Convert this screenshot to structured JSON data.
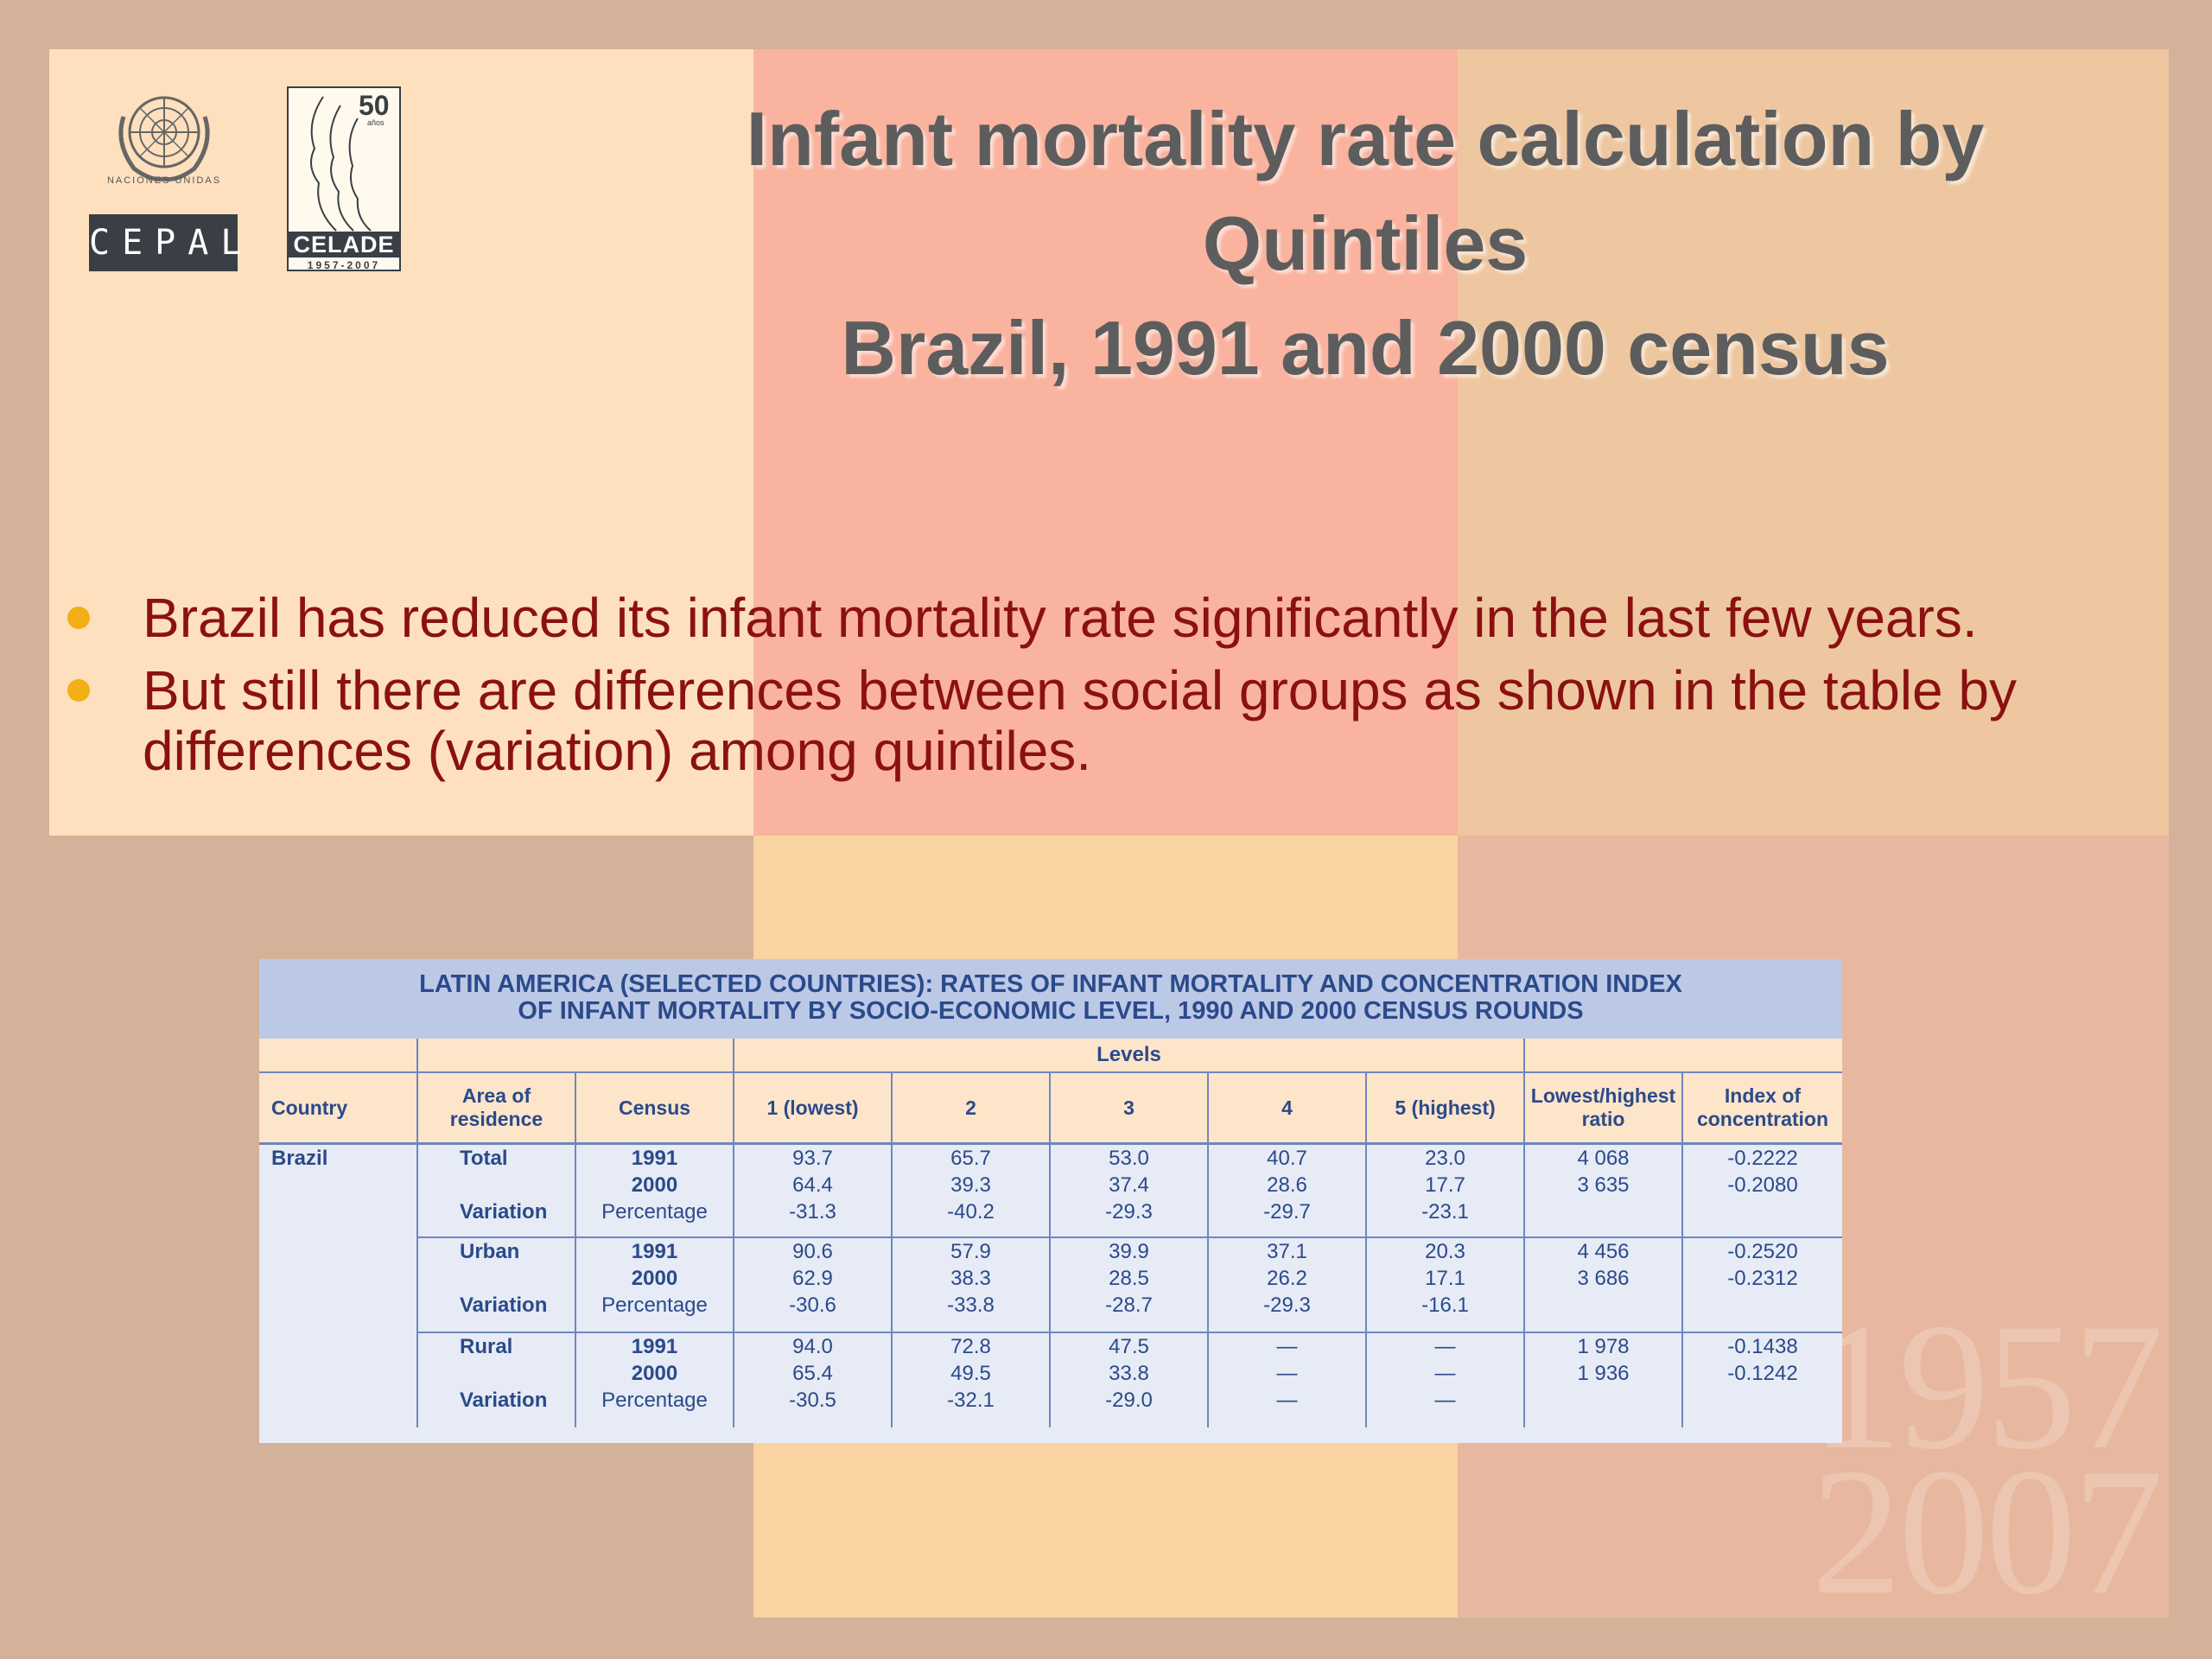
{
  "title": {
    "line1": "Infant mortality rate calculation by",
    "line2": "Quintiles",
    "line3": "Brazil, 1991 and 2000 census"
  },
  "logos": {
    "un_caption": "NACIONES UNIDAS",
    "cepal": "CEPAL",
    "celade_number": "50",
    "celade_anos": "años",
    "celade": "CELADE",
    "celade_years": "1957-2007"
  },
  "watermark": {
    "line1": "1957",
    "line2": "2007"
  },
  "bullets": [
    "Brazil has reduced its infant mortality rate significantly in the last few years.",
    "But still there are differences between social groups as shown in the table by differences (variation) among quintiles."
  ],
  "table": {
    "title_line1": "LATIN AMERICA (SELECTED COUNTRIES): RATES OF INFANT MORTALITY AND CONCENTRATION INDEX",
    "title_line2": "OF INFANT MORTALITY BY SOCIO-ECONOMIC LEVEL, 1990 AND 2000 CENSUS ROUNDS",
    "levels_label": "Levels",
    "headers": {
      "country": "Country",
      "area": "Area of residence",
      "census": "Census",
      "q1": "1 (lowest)",
      "q2": "2",
      "q3": "3",
      "q4": "4",
      "q5": "5 (highest)",
      "ratio": "Lowest/highest ratio",
      "index": "Index of concentration"
    },
    "country": "Brazil",
    "groups": [
      {
        "area": "Total",
        "variation_label": "Variation",
        "census": [
          "1991",
          "2000",
          "Percentage"
        ],
        "q1": [
          "93.7",
          "64.4",
          "-31.3"
        ],
        "q2": [
          "65.7",
          "39.3",
          "-40.2"
        ],
        "q3": [
          "53.0",
          "37.4",
          "-29.3"
        ],
        "q4": [
          "40.7",
          "28.6",
          "-29.7"
        ],
        "q5": [
          "23.0",
          "17.7",
          "-23.1"
        ],
        "ratio": [
          "4 068",
          "3 635",
          ""
        ],
        "index": [
          "-0.2222",
          "-0.2080",
          ""
        ]
      },
      {
        "area": "Urban",
        "variation_label": "Variation",
        "census": [
          "1991",
          "2000",
          "Percentage"
        ],
        "q1": [
          "90.6",
          "62.9",
          "-30.6"
        ],
        "q2": [
          "57.9",
          "38.3",
          "-33.8"
        ],
        "q3": [
          "39.9",
          "28.5",
          "-28.7"
        ],
        "q4": [
          "37.1",
          "26.2",
          "-29.3"
        ],
        "q5": [
          "20.3",
          "17.1",
          "-16.1"
        ],
        "ratio": [
          "4 456",
          "3 686",
          ""
        ],
        "index": [
          "-0.2520",
          "-0.2312",
          ""
        ]
      },
      {
        "area": "Rural",
        "variation_label": "Variation",
        "census": [
          "1991",
          "2000",
          "Percentage"
        ],
        "q1": [
          "94.0",
          "65.4",
          "-30.5"
        ],
        "q2": [
          "72.8",
          "49.5",
          "-32.1"
        ],
        "q3": [
          "47.5",
          "33.8",
          "-29.0"
        ],
        "q4": [
          "—",
          "—",
          "—"
        ],
        "q5": [
          "—",
          "—",
          "—"
        ],
        "ratio": [
          "1 978",
          "1 936",
          ""
        ],
        "index": [
          "-0.1438",
          "-0.1242",
          ""
        ]
      }
    ]
  }
}
